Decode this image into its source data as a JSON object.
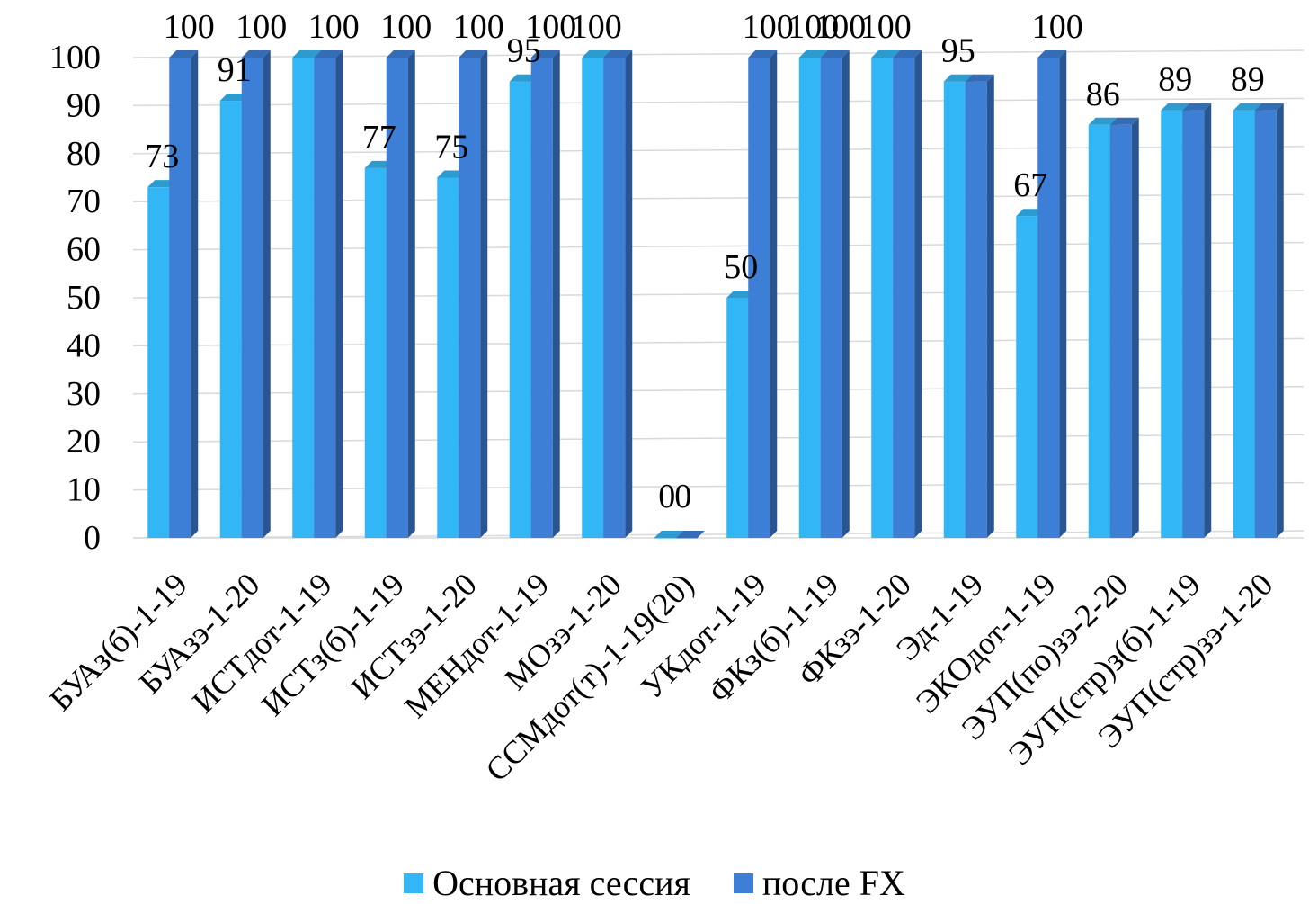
{
  "chart_data": {
    "type": "bar",
    "title": "",
    "xlabel": "",
    "ylabel": "",
    "ylim": [
      0,
      100
    ],
    "yticks": [
      0,
      10,
      20,
      30,
      40,
      50,
      60,
      70,
      80,
      90,
      100
    ],
    "grid": true,
    "legend": "bottom",
    "categories": [
      "БУАз(б)-1-19",
      "БУАзэ-1-20",
      "ИСТдот-1-19",
      "ИСТз(б)-1-19",
      "ИСТзэ-1-20",
      "МЕНдот-1-19",
      "МОзэ-1-20",
      "ССМдот(т)-1-19(20)",
      "УКдот-1-19",
      "ФКз(б)-1-19",
      "ФКзэ-1-20",
      "Эд-1-19",
      "ЭКОдот-1-19",
      "ЭУП(по)зэ-2-20",
      "ЭУП(стр)з(б)-1-19",
      "ЭУП(стр)зэ-1-20"
    ],
    "series": [
      {
        "name": "Основная сессия",
        "color": "#33B6F5",
        "values": [
          73,
          91,
          100,
          77,
          75,
          95,
          100,
          0,
          50,
          100,
          100,
          95,
          67,
          86,
          89,
          89
        ],
        "labels": [
          "73",
          "91",
          "",
          "77",
          "75",
          "95",
          "100",
          "0",
          "50",
          "100",
          "100",
          "95",
          "67",
          "86",
          "89",
          "89"
        ]
      },
      {
        "name": "после FX",
        "color": "#3D7FD6",
        "values": [
          100,
          100,
          100,
          100,
          100,
          100,
          100,
          0,
          100,
          100,
          100,
          95,
          100,
          86,
          89,
          89
        ],
        "labels": [
          "100",
          "100",
          "100",
          "100",
          "100",
          "100",
          "",
          "0",
          "100",
          "100",
          "",
          "",
          "100",
          "",
          "",
          ""
        ]
      }
    ]
  },
  "legend": {
    "items": [
      {
        "label": "Основная сессия",
        "color": "#33B6F5"
      },
      {
        "label": "после FX",
        "color": "#3D7FD6"
      }
    ]
  }
}
